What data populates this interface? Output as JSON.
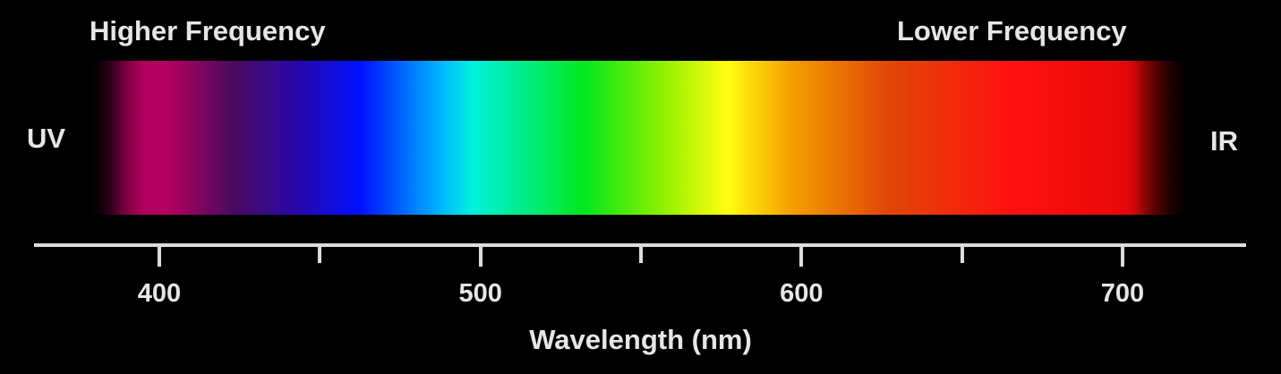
{
  "labels": {
    "higher_frequency": "Higher Frequency",
    "lower_frequency": "Lower Frequency",
    "uv": "UV",
    "ir": "IR"
  },
  "axis": {
    "title": "Wavelength (nm)",
    "unit": "nm",
    "range": [
      375,
      720
    ],
    "major_ticks": [
      {
        "value": 400,
        "label": "400"
      },
      {
        "value": 500,
        "label": "500"
      },
      {
        "value": 600,
        "label": "600"
      },
      {
        "value": 700,
        "label": "700"
      }
    ],
    "minor_ticks": [
      450,
      550,
      650
    ]
  },
  "spectrum": {
    "range": [
      375,
      720
    ],
    "stops": [
      {
        "wavelength": 375,
        "color": "#1a0010"
      },
      {
        "wavelength": 385,
        "color": "#b0005e"
      },
      {
        "wavelength": 400,
        "color": "#b2005f"
      },
      {
        "wavelength": 420,
        "color": "#4a0a5e"
      },
      {
        "wavelength": 440,
        "color": "#2a08a8"
      },
      {
        "wavelength": 460,
        "color": "#0010ff"
      },
      {
        "wavelength": 485,
        "color": "#00b4ff"
      },
      {
        "wavelength": 495,
        "color": "#00f0e0"
      },
      {
        "wavelength": 530,
        "color": "#00e81e"
      },
      {
        "wavelength": 555,
        "color": "#90f000"
      },
      {
        "wavelength": 575,
        "color": "#ffff10"
      },
      {
        "wavelength": 595,
        "color": "#f5a000"
      },
      {
        "wavelength": 625,
        "color": "#e04806"
      },
      {
        "wavelength": 665,
        "color": "#ff1010"
      },
      {
        "wavelength": 700,
        "color": "#e80808"
      },
      {
        "wavelength": 720,
        "color": "#2a0000"
      }
    ]
  },
  "colors": {
    "background": "#000000",
    "text": "#e6e6e6",
    "axis": "#dcdcdc"
  }
}
